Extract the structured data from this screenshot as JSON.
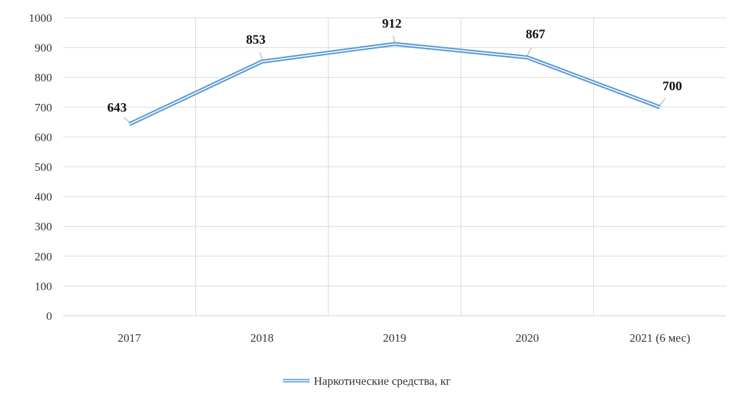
{
  "chart_data": {
    "type": "line",
    "categories": [
      "2017",
      "2018",
      "2019",
      "2020",
      "2021 (6 мес)"
    ],
    "series": [
      {
        "name": "Наркотические средства, кг",
        "values": [
          643,
          853,
          912,
          867,
          700
        ]
      }
    ],
    "data_labels": [
      "643",
      "853",
      "912",
      "867",
      "700"
    ],
    "y_ticks": [
      "0",
      "100",
      "200",
      "300",
      "400",
      "500",
      "600",
      "700",
      "800",
      "900",
      "1000"
    ],
    "ylim": [
      0,
      1000
    ],
    "y_step": 100,
    "grid": true,
    "legend_position": "bottom-center",
    "colors": {
      "line": "#5b9bd5",
      "line_inner": "#ffffff",
      "grid": "#d9d9d9",
      "label_leader": "#a6a6a6"
    }
  }
}
